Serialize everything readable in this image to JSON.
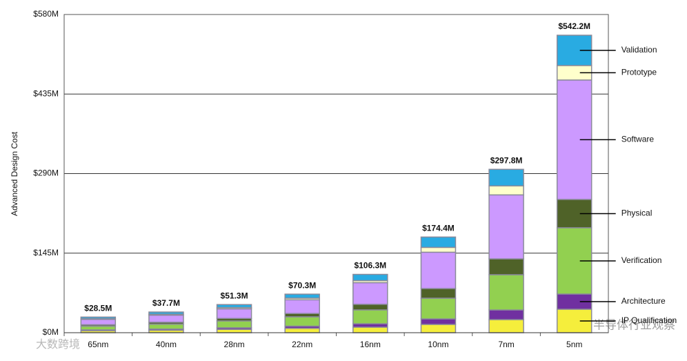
{
  "chart_data": {
    "type": "stacked-bar",
    "y_axis_label": "Advanced Design Cost",
    "categories": [
      "65nm",
      "40nm",
      "28nm",
      "22nm",
      "16nm",
      "10nm",
      "7nm",
      "5nm"
    ],
    "series": [
      {
        "name": "IP Qualification",
        "color": "#f5ee3c",
        "values": [
          3.5,
          4.5,
          6,
          8,
          10.1,
          15.1,
          23.9,
          42.8
        ]
      },
      {
        "name": "Architecture",
        "color": "#7030a0",
        "values": [
          1.7,
          2.2,
          3,
          4,
          6.3,
          10.1,
          17.6,
          27.7
        ]
      },
      {
        "name": "Verification",
        "color": "#92d050",
        "values": [
          6.8,
          9,
          12.5,
          17,
          25.2,
          37.7,
          64.2,
          120.8
        ]
      },
      {
        "name": "Physical",
        "color": "#4f6228",
        "values": [
          2.5,
          3.3,
          4.5,
          6,
          10.1,
          17.6,
          28.9,
          51.6
        ]
      },
      {
        "name": "Software",
        "color": "#cc99ff",
        "values": [
          9.8,
          13,
          17.5,
          25,
          39.5,
          66.2,
          116.6,
          217.7
        ]
      },
      {
        "name": "Prototype",
        "color": "#ffffcc",
        "values": [
          1.2,
          1.7,
          2.3,
          3,
          3.8,
          8.8,
          16.4,
          26.4
        ]
      },
      {
        "name": "Validation",
        "color": "#29abe2",
        "values": [
          3,
          4,
          5.5,
          7.3,
          11.3,
          18.9,
          30.2,
          55.2
        ]
      }
    ],
    "totals": {
      "values": [
        28.5,
        37.7,
        51.3,
        70.3,
        106.3,
        174.4,
        297.8,
        542.2
      ],
      "value_labels": [
        "$28.5M",
        "$37.7M",
        "$51.3M",
        "$70.3M",
        "$106.3M",
        "$174.4M",
        "$297.8M",
        "$542.2M"
      ]
    },
    "ylim": [
      0,
      580
    ],
    "yticks": [
      {
        "value": 0,
        "label": "$0M"
      },
      {
        "value": 145,
        "label": "$145M"
      },
      {
        "value": 290,
        "label": "$290M"
      },
      {
        "value": 435,
        "label": "$435M"
      },
      {
        "value": 580,
        "label": "$580M"
      }
    ],
    "grid": true
  },
  "watermarks": [
    "半导体行业观察",
    "大数跨境"
  ]
}
